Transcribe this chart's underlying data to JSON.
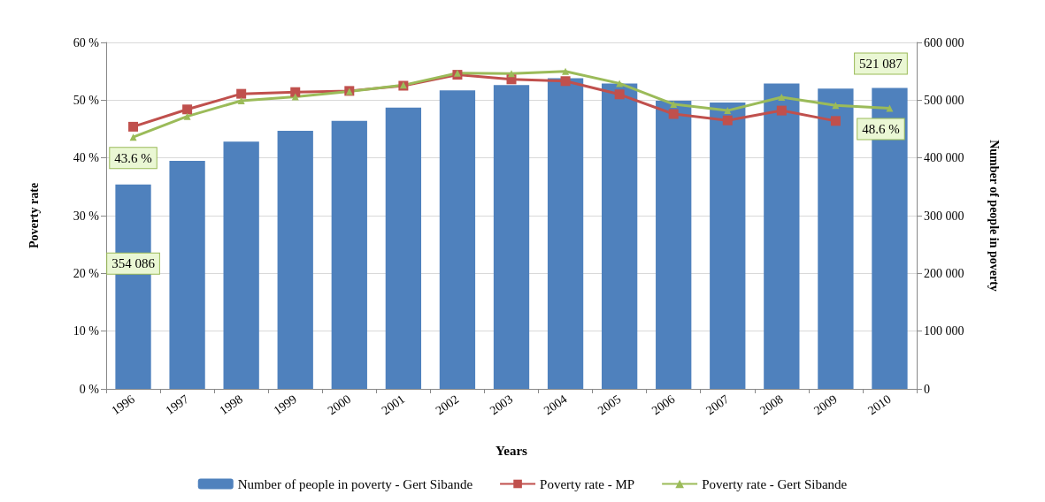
{
  "chart_data": {
    "type": "bar",
    "xlabel": "Years",
    "ylabel": "Poverty rate",
    "y2label": "Number of people in poverty",
    "categories": [
      "1996",
      "1997",
      "1998",
      "1999",
      "2000",
      "2001",
      "2002",
      "2003",
      "2004",
      "2005",
      "2006",
      "2007",
      "2008",
      "2009",
      "2010"
    ],
    "series": [
      {
        "name": "Number of people in poverty - Gert Sibande",
        "axis": "y2",
        "color": "#4f81bd",
        "values": [
          354086,
          395000,
          428000,
          447000,
          464000,
          487000,
          517000,
          526000,
          538000,
          529000,
          499000,
          496000,
          529000,
          520000,
          521087
        ],
        "value_labels": [
          "354 086",
          null,
          null,
          null,
          null,
          null,
          null,
          null,
          null,
          null,
          null,
          null,
          null,
          null,
          "521 087"
        ]
      },
      {
        "name": "Poverty rate - MP",
        "type": "line",
        "marker": "square",
        "color": "#c0504d",
        "values": [
          45.4,
          48.4,
          51.1,
          51.4,
          51.6,
          52.5,
          54.4,
          53.6,
          53.3,
          51.0,
          47.6,
          46.5,
          48.2,
          46.4,
          null
        ]
      },
      {
        "name": "Poverty rate - Gert Sibande",
        "type": "line",
        "marker": "triangle",
        "color": "#9bbb59",
        "values": [
          43.6,
          47.2,
          49.9,
          50.6,
          51.5,
          52.6,
          54.7,
          54.6,
          55.0,
          52.9,
          49.3,
          48.2,
          50.5,
          49.1,
          48.6
        ],
        "value_labels": [
          "43.6 %",
          null,
          null,
          null,
          null,
          null,
          null,
          null,
          null,
          null,
          null,
          null,
          null,
          null,
          "48.6 %"
        ]
      }
    ],
    "ylim": [
      0,
      60
    ],
    "yticks": [
      {
        "value": 0,
        "label": "0 %"
      },
      {
        "value": 10,
        "label": "10 %"
      },
      {
        "value": 20,
        "label": "20 %"
      },
      {
        "value": 30,
        "label": "30 %"
      },
      {
        "value": 40,
        "label": "40 %"
      },
      {
        "value": 50,
        "label": "50 %"
      },
      {
        "value": 60,
        "label": "60 %"
      }
    ],
    "y2lim": [
      0,
      600000
    ],
    "y2ticks": [
      {
        "value": 0,
        "label": "0"
      },
      {
        "value": 100000,
        "label": "100 000"
      },
      {
        "value": 200000,
        "label": "200 000"
      },
      {
        "value": 300000,
        "label": "300 000"
      },
      {
        "value": 400000,
        "label": "400 000"
      },
      {
        "value": 500000,
        "label": "500 000"
      },
      {
        "value": 600000,
        "label": "600 000"
      }
    ],
    "grid": "y",
    "legend": "bottom"
  }
}
